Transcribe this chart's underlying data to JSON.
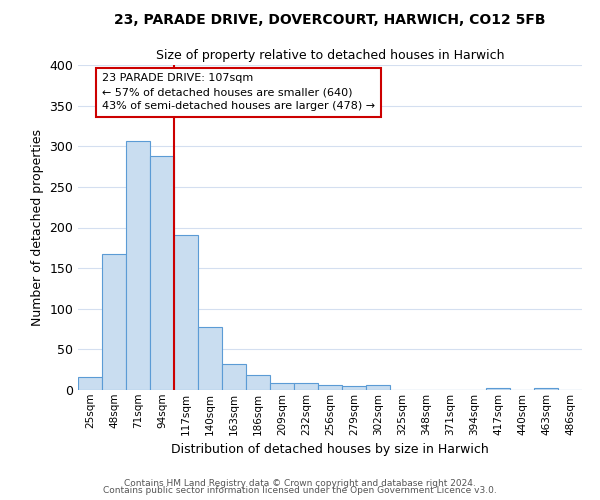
{
  "title": "23, PARADE DRIVE, DOVERCOURT, HARWICH, CO12 5FB",
  "subtitle": "Size of property relative to detached houses in Harwich",
  "xlabel": "Distribution of detached houses by size in Harwich",
  "ylabel": "Number of detached properties",
  "bin_labels": [
    "25sqm",
    "48sqm",
    "71sqm",
    "94sqm",
    "117sqm",
    "140sqm",
    "163sqm",
    "186sqm",
    "209sqm",
    "232sqm",
    "256sqm",
    "279sqm",
    "302sqm",
    "325sqm",
    "348sqm",
    "371sqm",
    "394sqm",
    "417sqm",
    "440sqm",
    "463sqm",
    "486sqm"
  ],
  "bar_values": [
    16,
    168,
    306,
    288,
    191,
    78,
    32,
    19,
    9,
    9,
    6,
    5,
    6,
    0,
    0,
    0,
    0,
    3,
    0,
    3,
    0
  ],
  "bar_color": "#c9ddf0",
  "bar_edge_color": "#5b9bd5",
  "ylim": [
    0,
    400
  ],
  "yticks": [
    0,
    50,
    100,
    150,
    200,
    250,
    300,
    350,
    400
  ],
  "red_line_x": 3.5,
  "annotation_title": "23 PARADE DRIVE: 107sqm",
  "annotation_line1": "← 57% of detached houses are smaller (640)",
  "annotation_line2": "43% of semi-detached houses are larger (478) →",
  "annotation_box_color": "#ffffff",
  "annotation_box_edge": "#cc0000",
  "red_line_color": "#cc0000",
  "background_color": "#ffffff",
  "grid_color": "#d4dff0",
  "footer_line1": "Contains HM Land Registry data © Crown copyright and database right 2024.",
  "footer_line2": "Contains public sector information licensed under the Open Government Licence v3.0."
}
